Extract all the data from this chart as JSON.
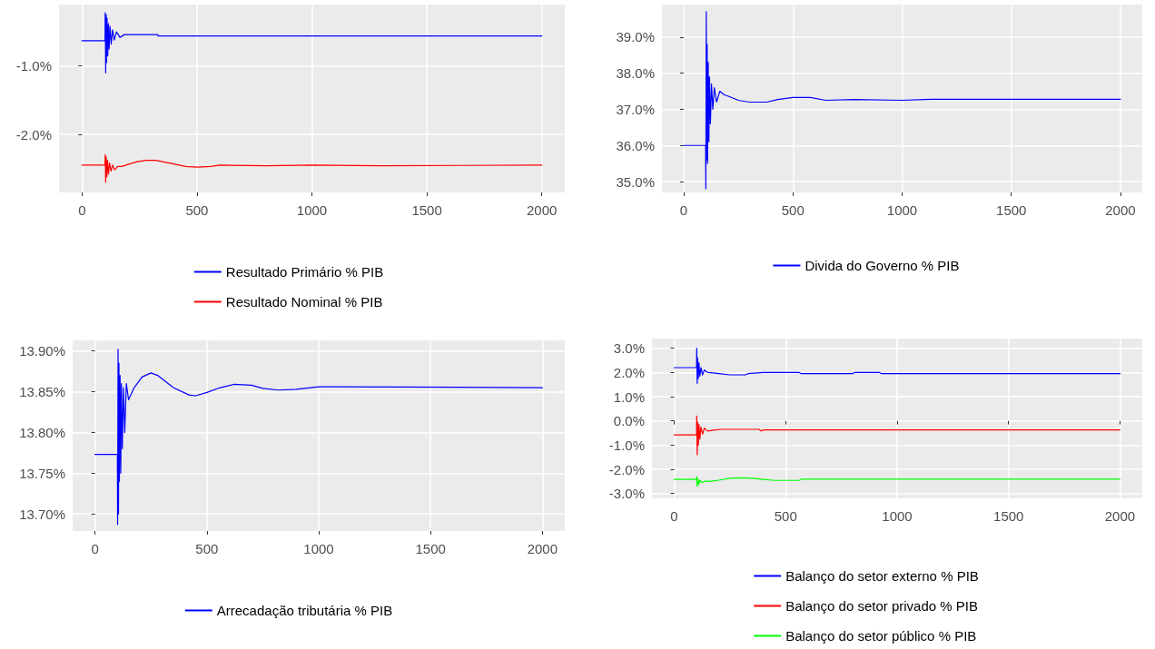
{
  "chart_data": [
    {
      "type": "line",
      "xlim": [
        -100,
        2100
      ],
      "xticks": [
        0,
        500,
        1000,
        1500,
        2000
      ],
      "ylim": [
        -2.85,
        -0.1
      ],
      "yticks": [
        {
          "value": -1,
          "label": "-1.0%"
        },
        {
          "value": -2,
          "label": "-2.0%"
        }
      ],
      "grid": true,
      "legend": "bottom",
      "series": [
        {
          "name": "Resultado Primário % PIB",
          "color": "#0000ff",
          "x": [
            0,
            100,
            101,
            103,
            105,
            107,
            109,
            112,
            115,
            118,
            122,
            127,
            133,
            140,
            150,
            165,
            185,
            200,
            330,
            331,
            2000
          ],
          "values": [
            -0.63,
            -0.63,
            -0.22,
            -1.1,
            -0.25,
            -0.95,
            -0.3,
            -0.85,
            -0.38,
            -0.75,
            -0.42,
            -0.68,
            -0.47,
            -0.62,
            -0.5,
            -0.58,
            -0.54,
            -0.54,
            -0.54,
            -0.56,
            -0.56
          ]
        },
        {
          "name": "Resultado Nominal % PIB",
          "color": "#ff0000",
          "x": [
            0,
            100,
            101,
            103,
            105,
            108,
            111,
            115,
            120,
            126,
            133,
            142,
            155,
            175,
            200,
            240,
            280,
            320,
            380,
            450,
            500,
            560,
            600,
            800,
            1000,
            1300,
            2000
          ],
          "values": [
            -2.45,
            -2.45,
            -2.3,
            -2.7,
            -2.33,
            -2.62,
            -2.38,
            -2.58,
            -2.42,
            -2.54,
            -2.45,
            -2.52,
            -2.47,
            -2.47,
            -2.44,
            -2.4,
            -2.38,
            -2.38,
            -2.42,
            -2.47,
            -2.48,
            -2.47,
            -2.45,
            -2.46,
            -2.45,
            -2.46,
            -2.45
          ]
        }
      ]
    },
    {
      "type": "line",
      "xlim": [
        -100,
        2100
      ],
      "xticks": [
        0,
        500,
        1000,
        1500,
        2000
      ],
      "ylim": [
        34.7,
        39.9
      ],
      "yticks": [
        {
          "value": 35,
          "label": "35.0%"
        },
        {
          "value": 36,
          "label": "36.0%"
        },
        {
          "value": 37,
          "label": "37.0%"
        },
        {
          "value": 38,
          "label": "38.0%"
        },
        {
          "value": 39,
          "label": "39.0%"
        }
      ],
      "grid": true,
      "legend": "bottom",
      "series": [
        {
          "name": "Divida do Governo % PIB",
          "color": "#0000ff",
          "x": [
            0,
            100,
            101,
            103,
            105,
            107,
            109,
            112,
            115,
            118,
            122,
            127,
            133,
            140,
            150,
            165,
            185,
            210,
            250,
            300,
            380,
            430,
            500,
            580,
            650,
            780,
            1000,
            1140,
            2000
          ],
          "values": [
            36.0,
            36.0,
            34.8,
            39.7,
            35.6,
            38.8,
            35.5,
            38.3,
            36.1,
            37.9,
            36.6,
            37.7,
            37.0,
            37.6,
            37.2,
            37.5,
            37.4,
            37.35,
            37.25,
            37.2,
            37.2,
            37.27,
            37.33,
            37.33,
            37.25,
            37.27,
            37.25,
            37.28,
            37.28
          ]
        }
      ]
    },
    {
      "type": "line",
      "xlim": [
        -100,
        2100
      ],
      "xticks": [
        0,
        500,
        1000,
        1500,
        2000
      ],
      "ylim": [
        13.679,
        13.913
      ],
      "yticks": [
        {
          "value": 13.7,
          "label": "13.70%"
        },
        {
          "value": 13.75,
          "label": "13.75%"
        },
        {
          "value": 13.8,
          "label": "13.80%"
        },
        {
          "value": 13.85,
          "label": "13.85%"
        },
        {
          "value": 13.9,
          "label": "13.90%"
        }
      ],
      "grid": true,
      "legend": "bottom",
      "series": [
        {
          "name": "Arrecadação tributária % PIB",
          "color": "#0000ff",
          "x": [
            0,
            100,
            101,
            103,
            105,
            107,
            109,
            112,
            115,
            118,
            122,
            127,
            133,
            140,
            150,
            175,
            210,
            250,
            280,
            350,
            420,
            450,
            500,
            560,
            620,
            700,
            750,
            820,
            900,
            1000,
            1080,
            2000
          ],
          "values": [
            13.773,
            13.773,
            13.687,
            13.902,
            13.7,
            13.885,
            13.74,
            13.87,
            13.75,
            13.86,
            13.78,
            13.855,
            13.8,
            13.86,
            13.84,
            13.855,
            13.868,
            13.873,
            13.87,
            13.855,
            13.846,
            13.845,
            13.849,
            13.855,
            13.859,
            13.858,
            13.854,
            13.852,
            13.853,
            13.856,
            13.856,
            13.855
          ]
        }
      ]
    },
    {
      "type": "line",
      "xlim": [
        -100,
        2100
      ],
      "xticks": [
        0,
        500,
        1000,
        1500,
        2000
      ],
      "ylim": [
        -3.2,
        3.4
      ],
      "yticks": [
        {
          "value": 3,
          "label": "3.0%"
        },
        {
          "value": 2,
          "label": "2.0%"
        },
        {
          "value": 1,
          "label": "1.0%"
        },
        {
          "value": 0,
          "label": "0.0%"
        },
        {
          "value": -1,
          "label": "-1.0%"
        },
        {
          "value": -2,
          "label": "-2.0%"
        },
        {
          "value": -3,
          "label": "-3.0%"
        }
      ],
      "grid": true,
      "legend": "bottom",
      "series": [
        {
          "name": "Balanço do setor externo % PIB",
          "color": "#0000ff",
          "x": [
            0,
            100,
            101,
            103,
            105,
            108,
            111,
            115,
            120,
            127,
            135,
            150,
            175,
            200,
            250,
            320,
            330,
            400,
            560,
            570,
            800,
            810,
            920,
            930,
            2000
          ],
          "values": [
            2.2,
            2.2,
            3.0,
            1.55,
            2.6,
            1.75,
            2.4,
            1.85,
            2.2,
            1.9,
            2.1,
            2.0,
            1.98,
            1.95,
            1.9,
            1.9,
            1.95,
            2.0,
            2.0,
            1.95,
            1.95,
            2.0,
            2.0,
            1.95,
            1.95
          ]
        },
        {
          "name": "Balanço do setor privado % PIB",
          "color": "#ff0000",
          "x": [
            0,
            100,
            101,
            103,
            105,
            108,
            111,
            115,
            120,
            127,
            135,
            150,
            175,
            210,
            380,
            390,
            400,
            2000
          ],
          "values": [
            -0.58,
            -0.58,
            0.2,
            -1.4,
            -0.05,
            -1.0,
            -0.15,
            -0.75,
            -0.25,
            -0.55,
            -0.3,
            -0.42,
            -0.38,
            -0.35,
            -0.35,
            -0.42,
            -0.37,
            -0.37
          ]
        },
        {
          "name": "Balanço do setor público % PIB",
          "color": "#00ff00",
          "x": [
            0,
            100,
            101,
            103,
            106,
            110,
            115,
            125,
            140,
            160,
            200,
            250,
            300,
            350,
            400,
            450,
            560,
            570,
            2000
          ],
          "values": [
            -2.42,
            -2.42,
            -2.3,
            -2.7,
            -2.4,
            -2.62,
            -2.45,
            -2.55,
            -2.48,
            -2.5,
            -2.45,
            -2.37,
            -2.35,
            -2.37,
            -2.42,
            -2.46,
            -2.46,
            -2.41,
            -2.41
          ]
        }
      ]
    }
  ]
}
